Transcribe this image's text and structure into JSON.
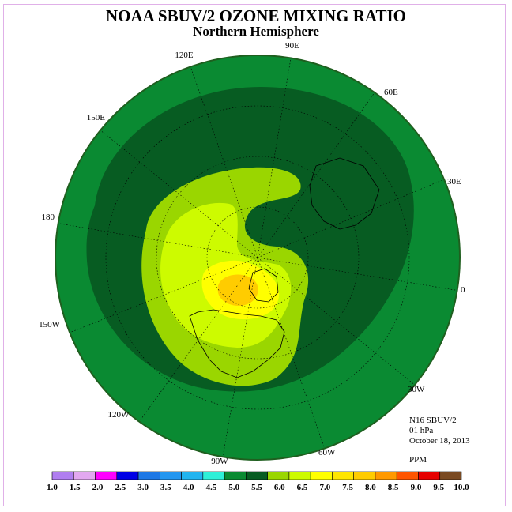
{
  "header": {
    "title": "NOAA SBUV/2 OZONE MIXING RATIO",
    "subtitle": "Northern Hemisphere"
  },
  "map": {
    "longitude_labels": [
      "90E",
      "60E",
      "30E",
      "0",
      "30W",
      "60W",
      "90W",
      "120W",
      "150W",
      "180",
      "150E",
      "120E"
    ],
    "colors": {
      "ocean_border": "#1f5f1f",
      "outer_ring": "#0a8a32",
      "dark_ring": "#075c22",
      "light_green": "#9ad600",
      "yellow_green": "#cdfb00",
      "yellow": "#ffff00",
      "gold": "#ffcc00"
    }
  },
  "info": {
    "satellite": "N16 SBUV/2",
    "level": "01 hPa",
    "date": "October 18, 2013",
    "units": "PPM"
  },
  "colorbar": {
    "ticks": [
      "1.0",
      "1.5",
      "2.0",
      "2.5",
      "3.0",
      "3.5",
      "4.0",
      "4.5",
      "5.0",
      "5.5",
      "6.0",
      "6.5",
      "7.0",
      "7.5",
      "8.0",
      "8.5",
      "9.0",
      "9.5",
      "10.0"
    ],
    "colors": [
      "#b07ef0",
      "#e2a8f0",
      "#ff00ff",
      "#0000e6",
      "#1e78e6",
      "#2296f0",
      "#21b4f0",
      "#2ef0d8",
      "#0a8a32",
      "#075c22",
      "#9ad600",
      "#cdfb00",
      "#ffff00",
      "#ffe600",
      "#ffcc00",
      "#ff9900",
      "#ff5500",
      "#e60000",
      "#7a4a22"
    ]
  }
}
